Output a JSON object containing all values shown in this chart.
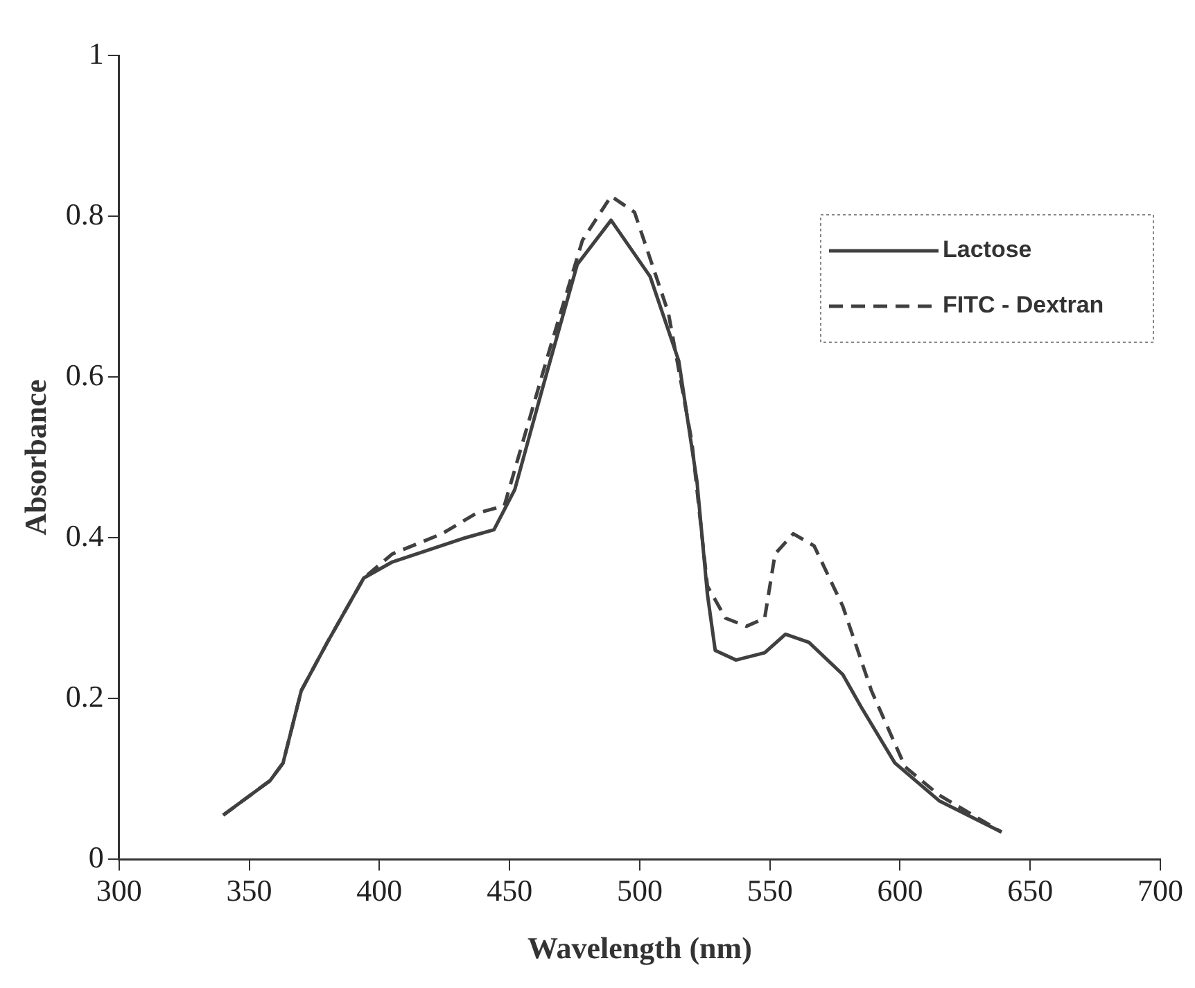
{
  "chart_data": {
    "type": "line",
    "xlabel": "Wavelength (nm)",
    "ylabel": "Absorbance",
    "xlim": [
      300,
      700
    ],
    "xticks": [
      300,
      350,
      400,
      450,
      500,
      550,
      600,
      650,
      700
    ],
    "ylim": [
      0,
      1
    ],
    "yticks": [
      0,
      0.2,
      0.4,
      0.6,
      0.8,
      1
    ],
    "grid": false,
    "legend": "top right",
    "marker": "none",
    "series": [
      {
        "name": "Lactose",
        "color": "#404040",
        "line_style": "solid",
        "x": [
          340,
          358,
          363,
          370,
          380,
          394,
          405,
          433,
          444,
          452,
          463,
          476,
          489,
          504,
          515,
          522,
          526,
          529,
          537,
          548,
          556,
          565,
          578,
          585,
          598,
          615,
          639
        ],
        "values": [
          0.055,
          0.098,
          0.12,
          0.21,
          0.27,
          0.35,
          0.37,
          0.4,
          0.41,
          0.46,
          0.59,
          0.74,
          0.795,
          0.725,
          0.62,
          0.47,
          0.33,
          0.26,
          0.248,
          0.257,
          0.28,
          0.27,
          0.23,
          0.19,
          0.12,
          0.073,
          0.034
        ]
      },
      {
        "name": "FITC - Dextran",
        "color": "#404040",
        "line_style": "dashed",
        "x": [
          340,
          358,
          363,
          370,
          380,
          394,
          405,
          424,
          437,
          448,
          465,
          478,
          489,
          498,
          511,
          520,
          526,
          533,
          541,
          548,
          552,
          559,
          567,
          578,
          589,
          602,
          615,
          639
        ],
        "values": [
          0.055,
          0.098,
          0.12,
          0.21,
          0.27,
          0.35,
          0.38,
          0.405,
          0.43,
          0.44,
          0.63,
          0.77,
          0.825,
          0.805,
          0.68,
          0.52,
          0.34,
          0.3,
          0.29,
          0.3,
          0.38,
          0.405,
          0.39,
          0.315,
          0.21,
          0.115,
          0.08,
          0.034
        ]
      }
    ]
  }
}
